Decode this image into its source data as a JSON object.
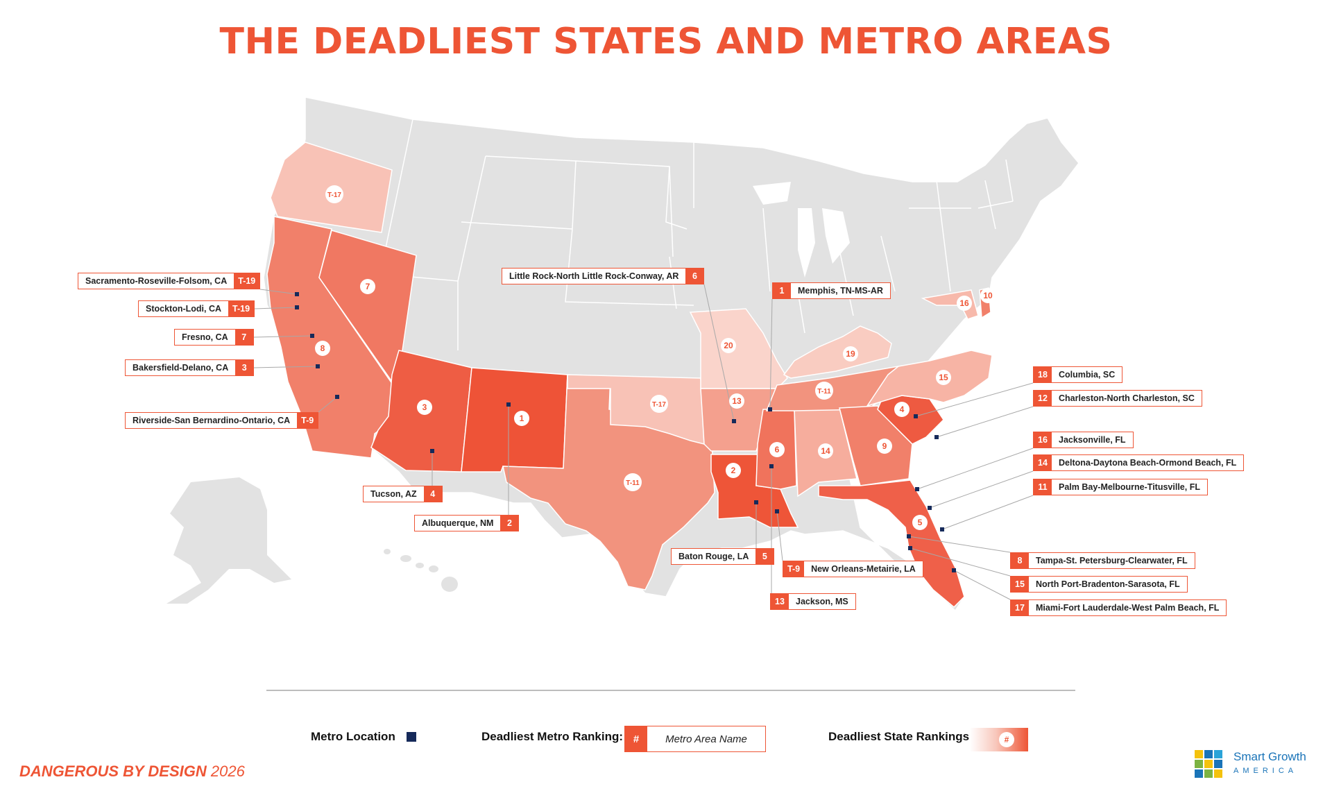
{
  "title": "THE DEADLIEST STATES AND METRO AREAS",
  "colors": {
    "accent": "#ee5535",
    "land": "#e2e2e2",
    "metro_marker": "#162a5a"
  },
  "states": [
    {
      "id": "OR",
      "label": "T-17",
      "fill": "#f8c2b6"
    },
    {
      "id": "CA",
      "label": "8",
      "fill": "#f1806a"
    },
    {
      "id": "NV",
      "label": "7",
      "fill": "#f07862"
    },
    {
      "id": "AZ",
      "label": "3",
      "fill": "#ee5d44"
    },
    {
      "id": "NM",
      "label": "1",
      "fill": "#ee5337"
    },
    {
      "id": "TX",
      "label": "T-11",
      "fill": "#f2937e"
    },
    {
      "id": "OK",
      "label": "T-17",
      "fill": "#f8c2b6"
    },
    {
      "id": "MO",
      "label": "20",
      "fill": "#fad4cb"
    },
    {
      "id": "AR",
      "label": "13",
      "fill": "#f4a08e"
    },
    {
      "id": "LA",
      "label": "2",
      "fill": "#ee5538"
    },
    {
      "id": "MS",
      "label": "6",
      "fill": "#f0735c"
    },
    {
      "id": "AL",
      "label": "14",
      "fill": "#f6ad9d"
    },
    {
      "id": "TN",
      "label": "T-11",
      "fill": "#f2937e"
    },
    {
      "id": "KY",
      "label": "19",
      "fill": "#f9ccc1"
    },
    {
      "id": "GA",
      "label": "9",
      "fill": "#f1806a"
    },
    {
      "id": "FL",
      "label": "5",
      "fill": "#ef6049"
    },
    {
      "id": "SC",
      "label": "4",
      "fill": "#ee5a41"
    },
    {
      "id": "NC",
      "label": "15",
      "fill": "#f7b4a5"
    },
    {
      "id": "MD",
      "label": "16",
      "fill": "#f7b9ab"
    },
    {
      "id": "DE",
      "label": "10",
      "fill": "#f1806a"
    }
  ],
  "metros": [
    {
      "name": "Sacramento-Roseville-Folsom, CA",
      "rank": "T-19"
    },
    {
      "name": "Stockton-Lodi, CA",
      "rank": "T-19"
    },
    {
      "name": "Fresno, CA",
      "rank": "7"
    },
    {
      "name": "Bakersfield-Delano, CA",
      "rank": "3"
    },
    {
      "name": "Riverside-San Bernardino-Ontario, CA",
      "rank": "T-9"
    },
    {
      "name": "Tucson, AZ",
      "rank": "4"
    },
    {
      "name": "Albuquerque, NM",
      "rank": "2"
    },
    {
      "name": "Little Rock-North Little Rock-Conway, AR",
      "rank": "6"
    },
    {
      "name": "Memphis, TN-MS-AR",
      "rank": "1"
    },
    {
      "name": "Baton Rouge, LA",
      "rank": "5"
    },
    {
      "name": "New Orleans-Metairie, LA",
      "rank": "T-9"
    },
    {
      "name": "Jackson, MS",
      "rank": "13"
    },
    {
      "name": "Columbia, SC",
      "rank": "18"
    },
    {
      "name": "Charleston-North Charleston, SC",
      "rank": "12"
    },
    {
      "name": "Jacksonville, FL",
      "rank": "16"
    },
    {
      "name": "Deltona-Daytona Beach-Ormond Beach, FL",
      "rank": "14"
    },
    {
      "name": "Palm Bay-Melbourne-Titusville, FL",
      "rank": "11"
    },
    {
      "name": "Tampa-St. Petersburg-Clearwater, FL",
      "rank": "8"
    },
    {
      "name": "North Port-Bradenton-Sarasota, FL",
      "rank": "15"
    },
    {
      "name": "Miami-Fort Lauderdale-West Palm Beach, FL",
      "rank": "17"
    }
  ],
  "legend": {
    "metro_location": "Metro Location",
    "metro_ranking_label": "Deadliest Metro Ranking:",
    "metro_ranking_hash": "#",
    "metro_ranking_name": "Metro Area Name",
    "state_rankings_label": "Deadliest State Rankings:",
    "state_rankings_hash": "#"
  },
  "footer": {
    "series": "DANGEROUS BY DESIGN",
    "year": "2026"
  },
  "logo": {
    "line1": "Smart Growth",
    "line2": "AMERICA"
  }
}
